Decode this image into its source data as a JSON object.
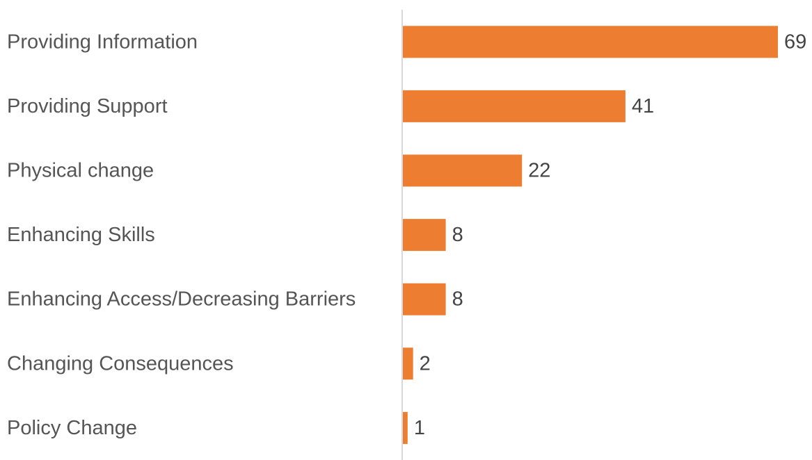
{
  "chart_data": {
    "type": "bar",
    "orientation": "horizontal",
    "categories": [
      "Providing Information",
      "Providing Support",
      "Physical change",
      "Enhancing Skills",
      "Enhancing Access/Decreasing Barriers",
      "Changing Consequences",
      "Policy Change"
    ],
    "values": [
      69,
      41,
      22,
      8,
      8,
      2,
      1
    ],
    "title": "",
    "xlabel": "",
    "ylabel": "",
    "xlim": [
      0,
      69
    ],
    "grid": false,
    "legend": "none",
    "bar_color": "#ED7D31",
    "axis_color": "#D9D9D9"
  }
}
